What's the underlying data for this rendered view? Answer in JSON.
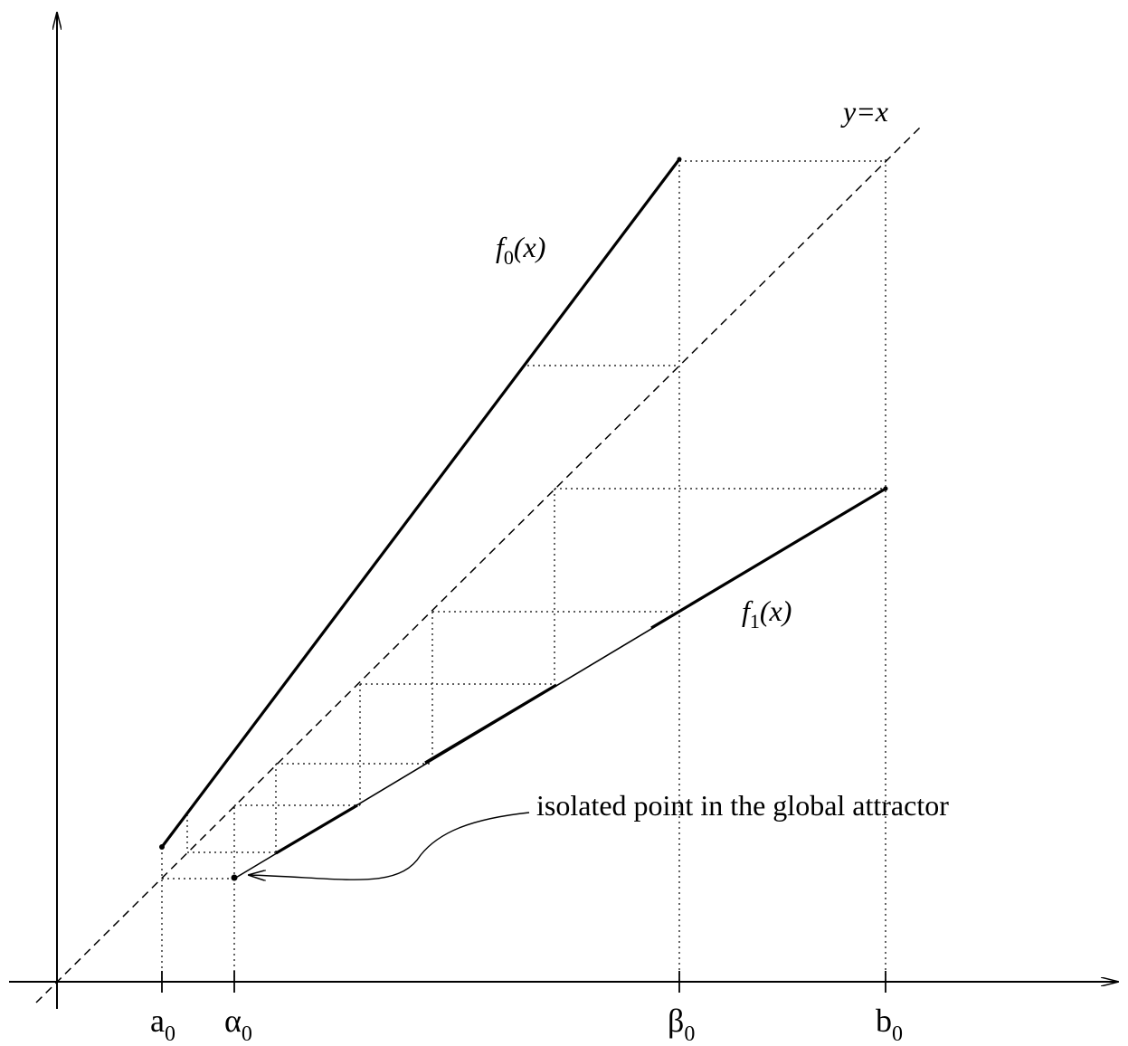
{
  "labels": {
    "diagonal": "y=x",
    "f0_name": "f",
    "f0_sub": "0",
    "f0_arg": "(x)",
    "f1_name": "f",
    "f1_sub": "1",
    "f1_arg": "(x)",
    "annotation": "isolated point in the global attractor"
  },
  "ticks": {
    "a0": {
      "base": "a",
      "sub": "0"
    },
    "alpha0": {
      "base": "α",
      "sub": "0"
    },
    "beta0": {
      "base": "β",
      "sub": "0"
    },
    "b0": {
      "base": "b",
      "sub": "0"
    }
  },
  "colors": {
    "ink": "#000000",
    "background": "#ffffff"
  }
}
